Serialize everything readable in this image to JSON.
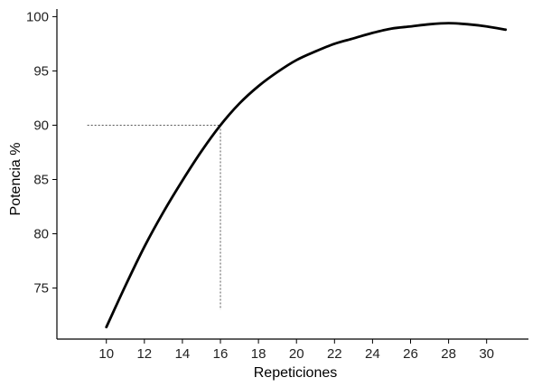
{
  "chart_data": {
    "type": "line",
    "title": "",
    "xlabel": "Repeticiones",
    "ylabel": "Potencia %",
    "xlim": [
      7.4,
      32.2
    ],
    "ylim": [
      70.3,
      100.7
    ],
    "x_ticks": [
      10,
      12,
      14,
      16,
      18,
      20,
      22,
      24,
      26,
      28,
      30
    ],
    "y_ticks": [
      75,
      80,
      85,
      90,
      95,
      100
    ],
    "grid": false,
    "legend": "none",
    "line_color": "#000000",
    "series": [
      {
        "x": [
          10,
          11,
          12,
          13,
          14,
          15,
          16,
          17,
          18,
          19,
          20,
          21,
          22,
          23,
          24,
          25,
          26,
          27,
          28,
          29,
          30,
          31
        ],
        "y": [
          71.4,
          75.2,
          78.8,
          82.0,
          84.9,
          87.6,
          90.0,
          92.0,
          93.6,
          94.9,
          96.0,
          96.8,
          97.5,
          98.0,
          98.5,
          98.9,
          99.1,
          99.3,
          99.4,
          99.3,
          99.1,
          98.8
        ]
      }
    ],
    "reference_point": {
      "x": 16,
      "y": 90,
      "x_start": 9,
      "y_bottom": 73
    }
  }
}
